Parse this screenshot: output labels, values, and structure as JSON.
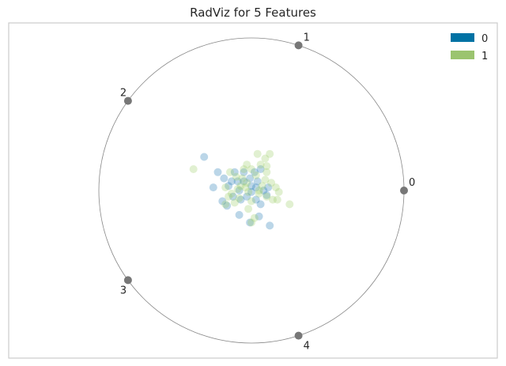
{
  "chart_data": {
    "type": "scatter",
    "subtype": "radviz",
    "title": "RadViz for 5 Features",
    "anchors": [
      "0",
      "1",
      "2",
      "3",
      "4"
    ],
    "legend": {
      "placement": "top-right",
      "entries": [
        "0",
        "1"
      ]
    },
    "colors": {
      "0": "#1f77b4",
      "1": "#9acd67",
      "frame": "#cccccc",
      "circle": "#888888",
      "anchor": "#777777"
    },
    "series": [
      {
        "name": "0",
        "points": [
          [
            -0.31,
            0.22
          ],
          [
            -0.22,
            0.12
          ],
          [
            -0.25,
            0.02
          ],
          [
            -0.18,
            0.08
          ],
          [
            -0.15,
            0.03
          ],
          [
            -0.11,
            0.12
          ],
          [
            -0.09,
            0.06
          ],
          [
            -0.05,
            0.12
          ],
          [
            -0.01,
            0.08
          ],
          [
            0.02,
            0.12
          ],
          [
            0.06,
            0.14
          ],
          [
            0.03,
            0.02
          ],
          [
            0.08,
            0.0
          ],
          [
            0.11,
            0.02
          ],
          [
            -0.12,
            -0.04
          ],
          [
            -0.08,
            0.0
          ],
          [
            -0.19,
            -0.07
          ],
          [
            -0.16,
            -0.1
          ],
          [
            -0.03,
            -0.04
          ],
          [
            0.0,
            -0.01
          ],
          [
            0.03,
            -0.06
          ],
          [
            0.06,
            -0.09
          ],
          [
            -0.08,
            -0.16
          ],
          [
            0.05,
            -0.17
          ],
          [
            -0.01,
            -0.21
          ],
          [
            0.12,
            -0.23
          ],
          [
            -0.05,
            0.06
          ],
          [
            -0.13,
            0.06
          ],
          [
            0.0,
            0.03
          ],
          [
            0.1,
            -0.03
          ],
          [
            -0.07,
            -0.06
          ],
          [
            0.04,
            0.06
          ]
        ]
      },
      {
        "name": "1",
        "points": [
          [
            -0.38,
            0.14
          ],
          [
            0.04,
            0.24
          ],
          [
            0.09,
            0.21
          ],
          [
            0.12,
            0.24
          ],
          [
            0.06,
            0.17
          ],
          [
            0.1,
            0.16
          ],
          [
            -0.03,
            0.17
          ],
          [
            -0.05,
            0.14
          ],
          [
            0.0,
            0.14
          ],
          [
            -0.14,
            0.12
          ],
          [
            -0.1,
            0.09
          ],
          [
            -0.07,
            0.03
          ],
          [
            -0.04,
            0.02
          ],
          [
            -0.02,
            -0.01
          ],
          [
            0.05,
            0.0
          ],
          [
            -0.15,
            -0.04
          ],
          [
            -0.17,
            -0.09
          ],
          [
            -0.08,
            -0.05
          ],
          [
            0.0,
            -0.07
          ],
          [
            0.05,
            -0.02
          ],
          [
            0.09,
            0.07
          ],
          [
            0.1,
            -0.04
          ],
          [
            0.14,
            -0.06
          ],
          [
            0.18,
            -0.01
          ],
          [
            0.17,
            -0.06
          ],
          [
            0.25,
            -0.09
          ],
          [
            -0.13,
            -0.02
          ],
          [
            -0.11,
            -0.08
          ],
          [
            -0.02,
            -0.12
          ],
          [
            0.02,
            -0.18
          ],
          [
            0.0,
            -0.21
          ],
          [
            -0.06,
            0.08
          ],
          [
            0.07,
            0.03
          ],
          [
            0.13,
            0.05
          ],
          [
            -0.09,
            0.01
          ],
          [
            -0.17,
            0.02
          ],
          [
            0.03,
            0.1
          ],
          [
            -0.03,
            0.05
          ],
          [
            0.1,
            0.12
          ],
          [
            0.16,
            0.02
          ]
        ]
      }
    ]
  }
}
